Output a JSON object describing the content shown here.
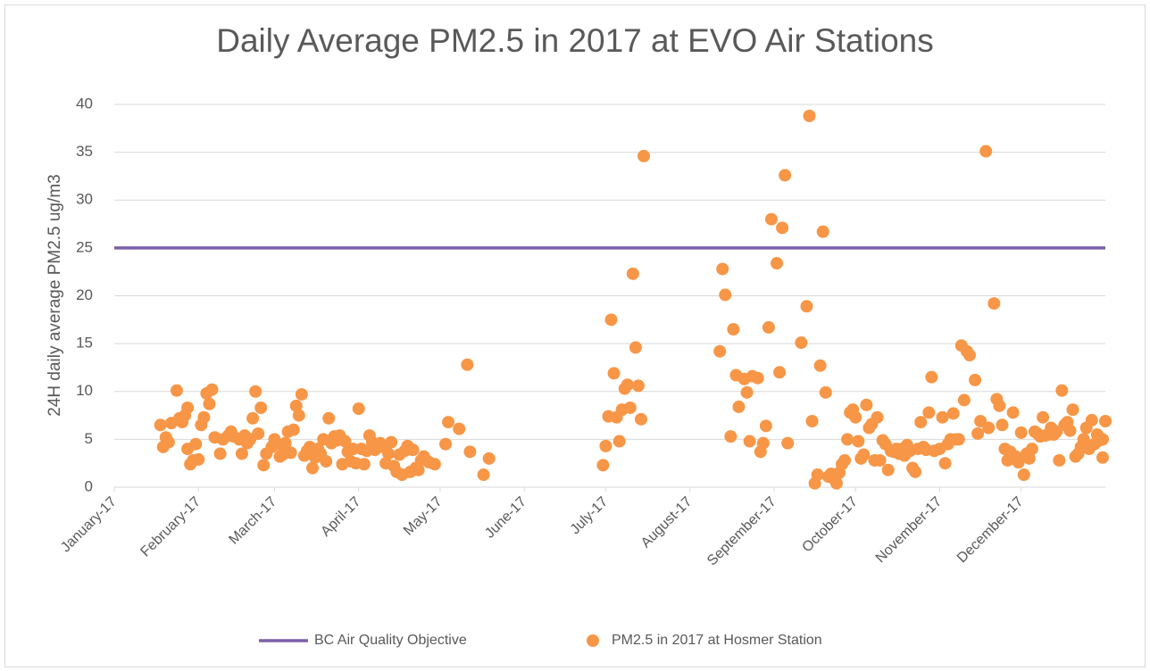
{
  "chart_data": {
    "type": "scatter",
    "title": "Daily Average PM2.5 in 2017 at EVO Air Stations",
    "y_label": "24H daily average PM2.5 ug/m3",
    "xlim": [
      42736,
      43101
    ],
    "xticks": [
      {
        "value": 42736,
        "label": "January-17"
      },
      {
        "value": 42767,
        "label": "February-17"
      },
      {
        "value": 42795,
        "label": "March-17"
      },
      {
        "value": 42826,
        "label": "April-17"
      },
      {
        "value": 42856,
        "label": "May-17"
      },
      {
        "value": 42887,
        "label": "June-17"
      },
      {
        "value": 42917,
        "label": "July-17"
      },
      {
        "value": 42948,
        "label": "August-17"
      },
      {
        "value": 42979,
        "label": "September-17"
      },
      {
        "value": 43009,
        "label": "October-17"
      },
      {
        "value": 43040,
        "label": "November-17"
      },
      {
        "value": 43070,
        "label": "December-17"
      }
    ],
    "ylim": [
      0,
      40
    ],
    "yticks": [
      0,
      5,
      10,
      15,
      20,
      25,
      30,
      35,
      40
    ],
    "grid": true,
    "legend": "bottom",
    "series": [
      {
        "name": "BC Air Quality Objective",
        "type": "line",
        "color": "#7d5fa8",
        "x": [
          42736,
          43101
        ],
        "values": [
          25,
          25
        ]
      },
      {
        "name": "PM2.5 in 2017 at Hosmer Station",
        "type": "scatter",
        "color": "#f79646",
        "x": [
          42753,
          42754,
          42755,
          42756,
          42757,
          42759,
          42760,
          42761,
          42762,
          42763,
          42763,
          42764,
          42765,
          42766,
          42767,
          42768,
          42769,
          42770,
          42771,
          42772,
          42773,
          42775,
          42776,
          42778,
          42779,
          42780,
          42782,
          42783,
          42784,
          42785,
          42786,
          42787,
          42788,
          42789,
          42790,
          42791,
          42792,
          42794,
          42795,
          42796,
          42797,
          42798,
          42799,
          42800,
          42801,
          42802,
          42803,
          42804,
          42805,
          42806,
          42807,
          42808,
          42809,
          42810,
          42811,
          42812,
          42813,
          42814,
          42815,
          42816,
          42817,
          42818,
          42819,
          42820,
          42821,
          42822,
          42823,
          42824,
          42825,
          42826,
          42827,
          42828,
          42829,
          42830,
          42831,
          42832,
          42833,
          42834,
          42835,
          42836,
          42837,
          42838,
          42839,
          42840,
          42841,
          42842,
          42843,
          42844,
          42845,
          42846,
          42847,
          42848,
          42849,
          42850,
          42851,
          42852,
          42854,
          42858,
          42859,
          42863,
          42866,
          42867,
          42872,
          42874,
          42916,
          42917,
          42918,
          42919,
          42920,
          42921,
          42922,
          42923,
          42924,
          42925,
          42926,
          42927,
          42928,
          42929,
          42930,
          42931,
          42959,
          42960,
          42961,
          42963,
          42964,
          42965,
          42966,
          42968,
          42969,
          42970,
          42971,
          42973,
          42974,
          42975,
          42976,
          42977,
          42978,
          42980,
          42981,
          42982,
          42983,
          42984,
          42989,
          42991,
          42992,
          42993,
          42994,
          42995,
          42996,
          42997,
          42998,
          42999,
          43000,
          43001,
          43002,
          43003,
          43004,
          43005,
          43006,
          43007,
          43008,
          43009,
          43010,
          43011,
          43012,
          43013,
          43014,
          43015,
          43016,
          43017,
          43018,
          43019,
          43020,
          43021,
          43022,
          43023,
          43024,
          43025,
          43026,
          43027,
          43028,
          43029,
          43030,
          43031,
          43032,
          43033,
          43034,
          43035,
          43036,
          43037,
          43038,
          43040,
          43041,
          43042,
          43043,
          43044,
          43045,
          43046,
          43047,
          43048,
          43049,
          43050,
          43051,
          43053,
          43054,
          43055,
          43057,
          43058,
          43060,
          43061,
          43062,
          43063,
          43064,
          43065,
          43066,
          43067,
          43068,
          43069,
          43070,
          43071,
          43072,
          43073,
          43074,
          43075,
          43076,
          43077,
          43078,
          43079,
          43080,
          43081,
          43082,
          43083,
          43084,
          43085,
          43086,
          43087,
          43088,
          43089,
          43090,
          43091,
          43092,
          43093,
          43094,
          43095,
          43096,
          43097,
          43098,
          43099,
          43100,
          43100,
          43101
        ],
        "values": [
          6.5,
          4.2,
          5.2,
          4.7,
          6.7,
          10.1,
          7.2,
          6.8,
          7.5,
          8.3,
          4.0,
          2.4,
          2.8,
          4.5,
          2.9,
          6.5,
          7.3,
          9.8,
          8.7,
          10.2,
          5.2,
          3.5,
          5.0,
          5.4,
          5.8,
          5.3,
          5.0,
          3.5,
          5.4,
          4.6,
          5.0,
          7.2,
          10.0,
          5.6,
          8.3,
          2.3,
          3.5,
          4.2,
          5.0,
          4.5,
          3.2,
          3.4,
          4.6,
          5.8,
          3.6,
          6.0,
          8.5,
          7.5,
          9.7,
          3.3,
          3.8,
          4.2,
          2.0,
          3.1,
          4.0,
          3.5,
          5.0,
          2.7,
          7.2,
          4.6,
          5.3,
          4.9,
          5.4,
          2.4,
          4.8,
          3.7,
          2.7,
          4.0,
          2.5,
          8.2,
          4.0,
          2.4,
          3.8,
          5.4,
          4.7,
          3.9,
          4.4,
          4.6,
          4.2,
          2.5,
          3.5,
          4.7,
          2.2,
          1.6,
          3.4,
          1.3,
          3.8,
          4.3,
          1.6,
          3.9,
          2.0,
          1.8,
          2.8,
          3.2,
          2.8,
          2.6,
          2.4,
          4.5,
          6.8,
          6.1,
          12.8,
          3.7,
          1.3,
          3.0,
          2.3,
          4.3,
          7.4,
          17.5,
          11.9,
          7.3,
          4.8,
          8.1,
          10.3,
          10.7,
          8.3,
          22.3,
          14.6,
          10.6,
          7.1,
          34.6,
          14.2,
          22.8,
          20.1,
          5.3,
          16.5,
          11.7,
          8.4,
          11.3,
          9.9,
          4.8,
          11.6,
          11.4,
          3.7,
          4.6,
          6.4,
          16.7,
          28.0,
          23.4,
          12.0,
          27.1,
          32.6,
          4.6,
          15.1,
          18.9,
          38.8,
          6.9,
          0.4,
          1.3,
          12.7,
          26.7,
          9.9,
          1.1,
          1.4,
          0.9,
          0.4,
          1.5,
          2.4,
          2.8,
          5.0,
          7.8,
          8.1,
          7.3,
          4.8,
          3.0,
          3.4,
          8.6,
          6.2,
          6.6,
          2.8,
          7.3,
          2.8,
          4.9,
          4.5,
          1.8,
          3.8,
          3.7,
          4.0,
          3.5,
          4.0,
          3.3,
          4.4,
          3.8,
          2.0,
          1.6,
          4.0,
          6.8,
          4.2,
          3.9,
          7.8,
          11.5,
          3.8,
          4.0,
          7.3,
          2.5,
          4.5,
          5.0,
          7.7,
          5.0,
          5.0,
          14.8,
          9.1,
          14.2,
          13.8,
          11.2,
          5.6,
          6.9,
          35.1,
          6.2,
          19.2,
          9.2,
          8.5,
          6.5,
          4.0,
          2.8,
          3.7,
          7.8,
          3.2,
          2.6,
          5.7,
          1.3,
          3.5,
          3.0,
          4.0,
          5.8,
          5.6,
          5.3,
          7.3,
          5.4,
          5.5,
          6.2,
          5.5,
          5.8,
          2.8,
          10.1,
          6.5,
          6.8,
          5.9,
          8.1,
          3.2,
          3.5,
          4.2,
          5.0,
          6.2,
          4.0,
          7.0,
          4.5,
          5.5,
          4.9,
          3.1,
          5.0,
          6.9
        ]
      }
    ]
  }
}
